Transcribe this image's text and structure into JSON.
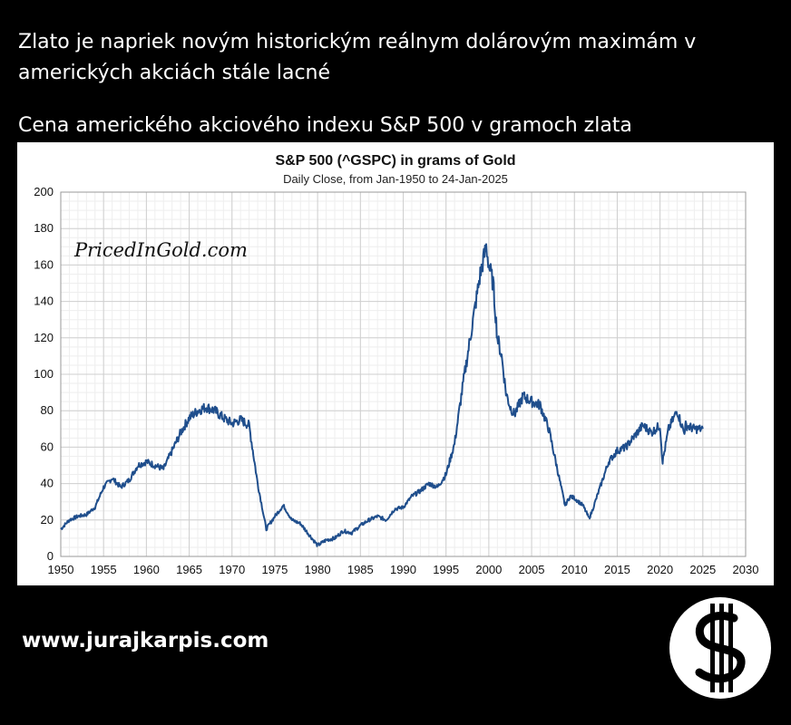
{
  "header": {
    "headline": "Zlato je napriek novým historickým reálnym dolárovým maximám v amerických akciách stále lacné",
    "subhead": "Cena amerického akciového indexu S&P 500 v gramoch zlata"
  },
  "footer": {
    "website": "www.jurajkarpis.com"
  },
  "colors": {
    "background": "#000000",
    "text": "#ffffff",
    "panel": "#ffffff",
    "line": "#1f4e8c",
    "grid": "#d9d9d9"
  },
  "chart_data": {
    "type": "line",
    "title": "S&P 500 (^GSPC) in grams of Gold",
    "subtitle": "Daily Close, from Jan-1950 to 24-Jan-2025",
    "watermark": "PricedInGold.com",
    "xlabel": "",
    "ylabel": "",
    "xlim": [
      1950,
      2030
    ],
    "ylim": [
      0,
      200
    ],
    "x_ticks": [
      1950,
      1955,
      1960,
      1965,
      1970,
      1975,
      1980,
      1985,
      1990,
      1995,
      2000,
      2005,
      2010,
      2015,
      2020,
      2025,
      2030
    ],
    "y_ticks": [
      0,
      20,
      40,
      60,
      80,
      100,
      120,
      140,
      160,
      180,
      200
    ],
    "grid": true,
    "legend": "none",
    "series": [
      {
        "x": [
          1950,
          1951,
          1952,
          1953,
          1954,
          1955,
          1956,
          1957,
          1958,
          1959,
          1960,
          1961,
          1962,
          1963,
          1964,
          1965,
          1966,
          1967,
          1968,
          1969,
          1970,
          1971,
          1972,
          1973,
          1974,
          1975,
          1976,
          1977,
          1978,
          1979,
          1980,
          1981,
          1982,
          1983,
          1984,
          1985,
          1986,
          1987,
          1988,
          1989,
          1990,
          1991,
          1992,
          1993,
          1994,
          1995,
          1996,
          1997,
          1998,
          1999,
          1999.7,
          2000,
          2000.5,
          2001,
          2001.5,
          2002,
          2002.5,
          2003,
          2004,
          2005,
          2006,
          2007,
          2008,
          2008.9,
          2009.5,
          2010,
          2011,
          2011.7,
          2012,
          2013,
          2014,
          2015,
          2016,
          2017,
          2018,
          2019,
          2020,
          2020.3,
          2021,
          2022,
          2022.8,
          2023,
          2024,
          2025
        ],
        "values": [
          15,
          20,
          22,
          23,
          27,
          38,
          43,
          38,
          42,
          50,
          52,
          50,
          48,
          58,
          68,
          76,
          80,
          82,
          80,
          76,
          73,
          75,
          72,
          40,
          15,
          22,
          28,
          20,
          18,
          12,
          6,
          9,
          10,
          14,
          13,
          17,
          20,
          22,
          20,
          26,
          27,
          33,
          36,
          40,
          38,
          45,
          62,
          95,
          125,
          155,
          170,
          160,
          150,
          120,
          110,
          90,
          82,
          78,
          88,
          85,
          83,
          70,
          48,
          28,
          33,
          32,
          28,
          21,
          24,
          38,
          52,
          58,
          60,
          66,
          72,
          68,
          72,
          52,
          70,
          80,
          68,
          72,
          70,
          70
        ]
      }
    ]
  }
}
